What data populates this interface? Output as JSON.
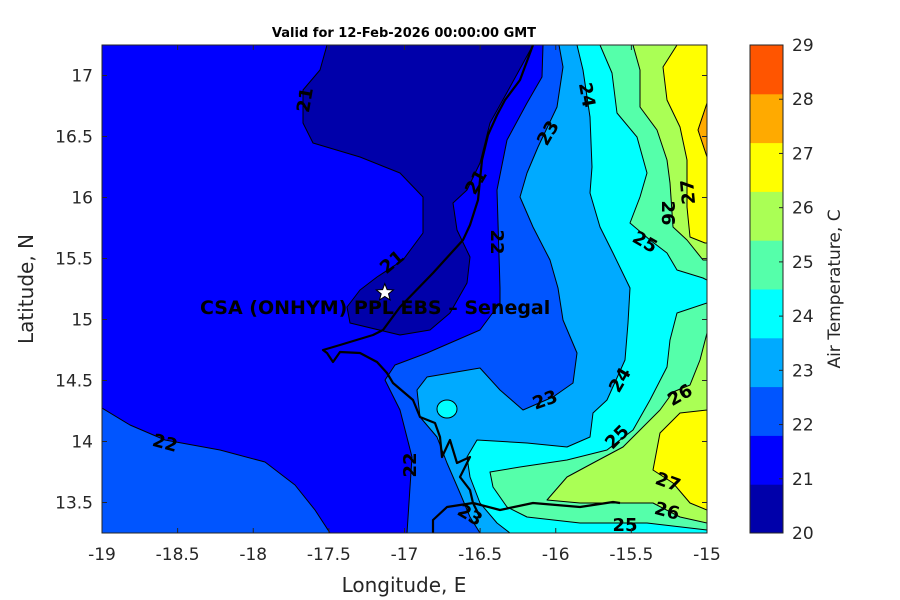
{
  "chart_data": {
    "type": "contour",
    "title": "Valid for 12-Feb-2026 00:00:00 GMT",
    "xlabel": "Longitude, E",
    "ylabel": "Latitude, N",
    "xlim": [
      -19,
      -15
    ],
    "ylim": [
      13.25,
      17.25
    ],
    "xticks": [
      -19,
      -18.5,
      -18,
      -17.5,
      -17,
      -16.5,
      -16,
      -15.5,
      -15
    ],
    "xtick_labels": [
      "-19",
      "-18.5",
      "-18",
      "-17.5",
      "-17",
      "-16.5",
      "-16",
      "-15.5",
      "-15"
    ],
    "yticks": [
      13.5,
      14,
      14.5,
      15,
      15.5,
      16,
      16.5,
      17
    ],
    "ytick_labels": [
      "13.5",
      "14",
      "14.5",
      "15",
      "15.5",
      "16",
      "16.5",
      "17"
    ],
    "colorbar": {
      "label": "Air Temperature, C",
      "range": [
        20,
        29
      ],
      "ticks": [
        20,
        21,
        22,
        23,
        24,
        25,
        26,
        27,
        28,
        29
      ],
      "tick_labels": [
        "20",
        "21",
        "22",
        "23",
        "24",
        "25",
        "26",
        "27",
        "28",
        "29"
      ],
      "colors": [
        "#0000AA",
        "#0000FF",
        "#0055FF",
        "#00AAFF",
        "#00FFFF",
        "#55FFAA",
        "#AAFF55",
        "#FFFF00",
        "#FFAA00",
        "#FF5500"
      ]
    },
    "contour_labels": [
      "21",
      "21",
      "21",
      "22",
      "22",
      "22",
      "23",
      "23",
      "23",
      "24",
      "24",
      "25",
      "25",
      "25",
      "26",
      "26",
      "26",
      "27",
      "27"
    ],
    "site": {
      "name": "CSA (ONHYM) PPL EBS  – Senegal",
      "lon": -17.13,
      "lat": 15.22,
      "marker": "star-icon"
    }
  }
}
